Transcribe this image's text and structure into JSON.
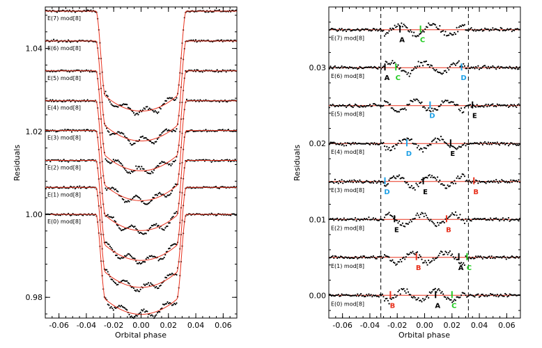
{
  "colors": {
    "model": "#e8301c",
    "black": "#000000",
    "green": "#22cc22",
    "cyan": "#1ea0e6",
    "red": "#e8301c"
  },
  "chart_data": [
    {
      "type": "scatter",
      "xlabel": "Orbital phase",
      "ylabel": "Residuals",
      "xlim": [
        -0.07,
        0.07
      ],
      "ylim": [
        0.975,
        1.05
      ],
      "x_ticks": [
        -0.06,
        -0.04,
        -0.02,
        0.0,
        0.02,
        0.04,
        0.06
      ],
      "x_tick_labels": [
        "-0.06",
        "-0.04",
        "-0.02",
        "0.00",
        "0.02",
        "0.04",
        "0.06"
      ],
      "y_ticks": [
        0.98,
        1.0,
        1.02,
        1.04
      ],
      "y_tick_labels": [
        "0.98",
        "1.00",
        "1.02",
        "1.04"
      ],
      "transit": {
        "depth": 0.0205,
        "t1": 0.033,
        "t2": 0.026,
        "limb_curvature": 0.008,
        "limb_width": 0.026
      },
      "series": [
        {
          "label": "E(7) mod[8]",
          "baseline": 1.049
        },
        {
          "label": "E(6) mod[8]",
          "baseline": 1.0418
        },
        {
          "label": "E(5) mod[8]",
          "baseline": 1.0346
        },
        {
          "label": "E(4) mod[8]",
          "baseline": 1.0274
        },
        {
          "label": "E(3) mod[8]",
          "baseline": 1.0202
        },
        {
          "label": "E(2) mod[8]",
          "baseline": 1.013
        },
        {
          "label": "E(1) mod[8]",
          "baseline": 1.0065
        },
        {
          "label": "E(0) mod[8]",
          "baseline": 1.0
        }
      ]
    },
    {
      "type": "scatter",
      "xlabel": "Orbital phase",
      "ylabel": "Residuals",
      "xlim": [
        -0.07,
        0.07
      ],
      "ylim": [
        -0.003,
        0.038
      ],
      "x_ticks": [
        -0.06,
        -0.04,
        -0.02,
        0.0,
        0.02,
        0.04,
        0.06
      ],
      "x_tick_labels": [
        "-0.06",
        "-0.04",
        "-0.02",
        "0.00",
        "0.02",
        "0.04",
        "0.06"
      ],
      "y_ticks": [
        0.0,
        0.01,
        0.02,
        0.03
      ],
      "y_tick_labels": [
        "0.00",
        "0.01",
        "0.02",
        "0.03"
      ],
      "vlines": [
        -0.032,
        0.032
      ],
      "series": [
        {
          "label": "E(7) mod[8]",
          "baseline": 0.035,
          "markers": [
            {
              "x": -0.018,
              "letter": "A",
              "color": "black"
            },
            {
              "x": -0.003,
              "letter": "C",
              "color": "green"
            }
          ]
        },
        {
          "label": "E(6) mod[8]",
          "baseline": 0.03,
          "markers": [
            {
              "x": -0.029,
              "letter": "A",
              "color": "black"
            },
            {
              "x": -0.021,
              "letter": "C",
              "color": "green"
            },
            {
              "x": 0.027,
              "letter": "D",
              "color": "cyan"
            }
          ]
        },
        {
          "label": "E(5) mod[8]",
          "baseline": 0.025,
          "markers": [
            {
              "x": 0.004,
              "letter": "D",
              "color": "cyan"
            },
            {
              "x": 0.035,
              "letter": "E",
              "color": "black"
            }
          ]
        },
        {
          "label": "E(4) mod[8]",
          "baseline": 0.02,
          "markers": [
            {
              "x": -0.013,
              "letter": "D",
              "color": "cyan"
            },
            {
              "x": 0.019,
              "letter": "E",
              "color": "black"
            }
          ]
        },
        {
          "label": "E(3) mod[8]",
          "baseline": 0.015,
          "markers": [
            {
              "x": -0.029,
              "letter": "D",
              "color": "cyan"
            },
            {
              "x": -0.001,
              "letter": "E",
              "color": "black"
            },
            {
              "x": 0.036,
              "letter": "B",
              "color": "red"
            }
          ]
        },
        {
          "label": "E(2) mod[8]",
          "baseline": 0.01,
          "markers": [
            {
              "x": -0.022,
              "letter": "E",
              "color": "black"
            },
            {
              "x": 0.016,
              "letter": "B",
              "color": "red"
            }
          ]
        },
        {
          "label": "E(1) mod[8]",
          "baseline": 0.005,
          "markers": [
            {
              "x": -0.006,
              "letter": "B",
              "color": "red"
            },
            {
              "x": 0.025,
              "letter": "A",
              "color": "black"
            },
            {
              "x": 0.031,
              "letter": "C",
              "color": "green"
            }
          ]
        },
        {
          "label": "E(0) mod[8]",
          "baseline": 0.0,
          "markers": [
            {
              "x": -0.025,
              "letter": "B",
              "color": "red"
            },
            {
              "x": 0.008,
              "letter": "A",
              "color": "black"
            },
            {
              "x": 0.02,
              "letter": "C",
              "color": "green"
            }
          ]
        }
      ]
    }
  ]
}
